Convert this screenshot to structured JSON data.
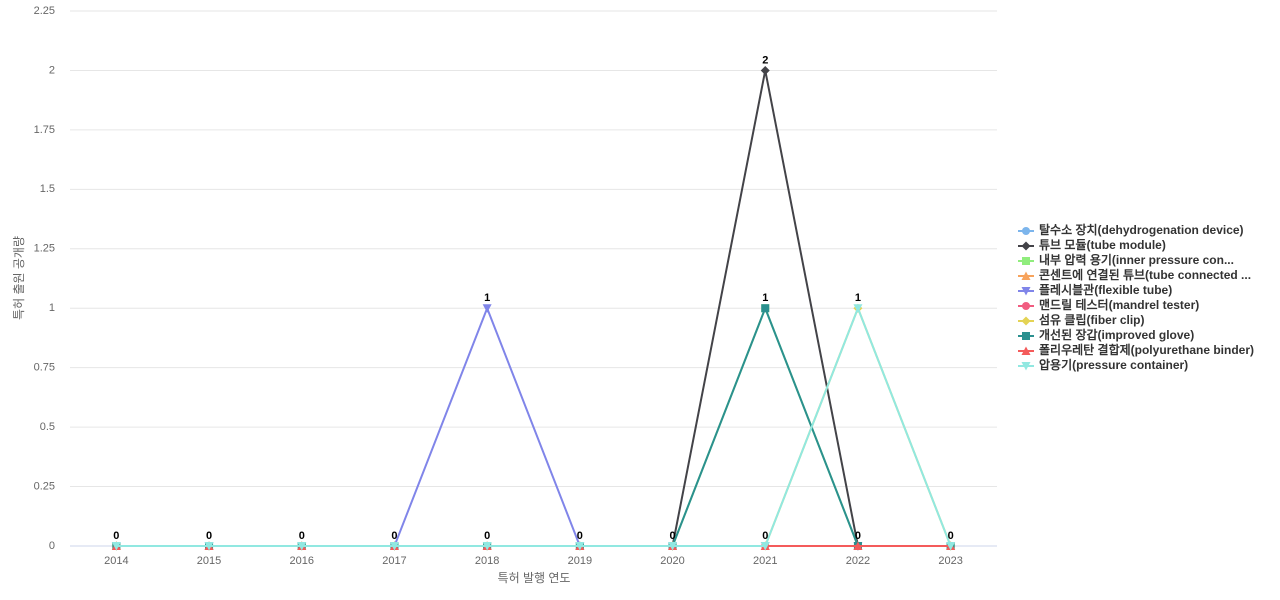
{
  "chart_data": {
    "type": "line",
    "x_label": "특허 발행 연도",
    "y_label": "특허 출원 공개량",
    "categories": [
      "2014",
      "2015",
      "2016",
      "2017",
      "2018",
      "2019",
      "2020",
      "2021",
      "2022",
      "2023"
    ],
    "ylim": [
      0,
      2.25
    ],
    "yticks": [
      0,
      0.25,
      0.5,
      0.75,
      1,
      1.25,
      1.5,
      1.75,
      2,
      2.25
    ],
    "grid": true,
    "legend": "right",
    "series": [
      {
        "name": "탈수소 장치(dehydrogenation device)",
        "color": "#7cb5ec",
        "marker": "circle",
        "values": [
          0,
          0,
          0,
          0,
          0,
          0,
          0,
          0,
          0,
          0
        ]
      },
      {
        "name": "튜브 모듈(tube module)",
        "color": "#434348",
        "marker": "diamond",
        "values": [
          0,
          0,
          0,
          0,
          0,
          0,
          0,
          2,
          0,
          0
        ]
      },
      {
        "name": "내부 압력 용기(inner pressure con...",
        "color": "#90ed7d",
        "marker": "square",
        "values": [
          0,
          0,
          0,
          0,
          0,
          0,
          0,
          1,
          0,
          0
        ]
      },
      {
        "name": "콘센트에 연결된 튜브(tube connected ...",
        "color": "#f7a35c",
        "marker": "triangle",
        "values": [
          0,
          0,
          0,
          0,
          0,
          0,
          0,
          0,
          0,
          0
        ]
      },
      {
        "name": "플레시블관(flexible tube)",
        "color": "#8085e9",
        "marker": "triangle-down",
        "values": [
          0,
          0,
          0,
          0,
          1,
          0,
          0,
          0,
          0,
          0
        ]
      },
      {
        "name": "맨드릴 테스터(mandrel tester)",
        "color": "#f15c80",
        "marker": "circle",
        "values": [
          0,
          0,
          0,
          0,
          0,
          0,
          0,
          0,
          0,
          0
        ]
      },
      {
        "name": "섬유 클립(fiber clip)",
        "color": "#e4d354",
        "marker": "diamond",
        "values": [
          0,
          0,
          0,
          0,
          0,
          0,
          0,
          0,
          1,
          0
        ]
      },
      {
        "name": "개선된 장갑(improved glove)",
        "color": "#2b908f",
        "marker": "square",
        "values": [
          0,
          0,
          0,
          0,
          0,
          0,
          0,
          1,
          0,
          0
        ]
      },
      {
        "name": "폴리우레탄 결합제(polyurethane binder)",
        "color": "#f45b5b",
        "marker": "triangle",
        "values": [
          0,
          0,
          0,
          0,
          0,
          0,
          0,
          0,
          0,
          0
        ]
      },
      {
        "name": "압용기(pressure container)",
        "color": "#91e8e1",
        "marker": "triangle-down",
        "values": [
          0,
          0,
          0,
          0,
          0,
          0,
          0,
          0,
          1,
          0
        ]
      }
    ]
  }
}
